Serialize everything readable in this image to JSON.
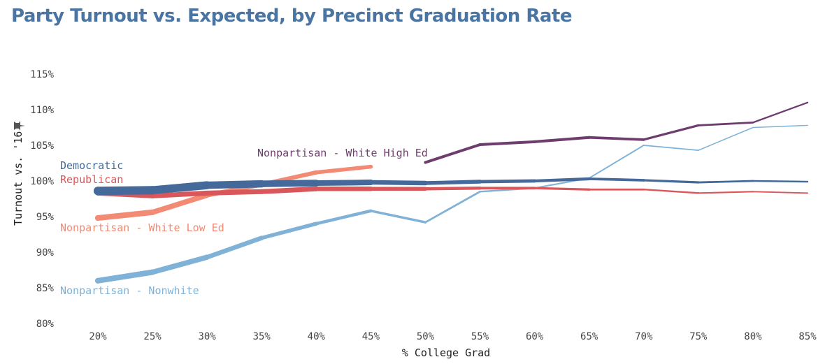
{
  "title": "Party Turnout vs. Expected, by Precinct Graduation Rate",
  "colors": {
    "title": "#4a74a1",
    "democratic": "#44699a",
    "republican": "#d9565a",
    "white_low_ed": "#f28a74",
    "nonwhite": "#7fb2d6",
    "white_high_ed": "#6e3d6e",
    "pin_icon": "#555555"
  },
  "pin_icon": "pin-icon",
  "chart_data": {
    "type": "line",
    "xlabel": "% College Grad",
    "ylabel": "Turnout vs. '16",
    "x_tick_labels": [
      "20%",
      "25%",
      "30%",
      "35%",
      "40%",
      "45%",
      "50%",
      "55%",
      "60%",
      "65%",
      "70%",
      "75%",
      "80%",
      "85%"
    ],
    "y_tick_labels": [
      "80%",
      "85%",
      "90%",
      "95%",
      "100%",
      "105%",
      "110%",
      "115%"
    ],
    "x_range": [
      20,
      85
    ],
    "y_range": [
      79.5,
      119
    ],
    "grid": false,
    "legend": "inline labels",
    "series": [
      {
        "name": "Nonpartisan - Nonwhite",
        "color_key": "nonwhite",
        "x": [
          20,
          25,
          30,
          35,
          40,
          45,
          50,
          55,
          60,
          65,
          70,
          75,
          80,
          85
        ],
        "y": [
          86.0,
          87.2,
          89.3,
          92.0,
          94.0,
          95.8,
          94.2,
          98.5,
          99.0,
          100.4,
          105.0,
          104.3,
          107.5,
          107.8
        ],
        "weights": [
          8,
          8,
          7,
          6,
          5,
          4,
          3,
          2.6,
          2.2,
          2,
          1.8,
          1.6,
          1.5,
          1.4
        ]
      },
      {
        "name": "Nonpartisan - White Low Ed",
        "color_key": "white_low_ed",
        "x": [
          20,
          25,
          30,
          35,
          40,
          45
        ],
        "y": [
          94.8,
          95.6,
          98.0,
          99.5,
          101.2,
          102.0
        ],
        "weights": [
          8,
          8,
          7,
          6,
          6,
          5
        ]
      },
      {
        "name": "Republican",
        "color_key": "republican",
        "x": [
          20,
          25,
          30,
          35,
          40,
          45,
          50,
          55,
          60,
          65,
          70,
          75,
          80,
          85
        ],
        "y": [
          98.3,
          97.9,
          98.3,
          98.5,
          98.9,
          98.9,
          98.9,
          99.0,
          99.0,
          98.8,
          98.8,
          98.3,
          98.5,
          98.3
        ],
        "weights": [
          7,
          7,
          7,
          7,
          7,
          6,
          5,
          4,
          3.5,
          3,
          2.6,
          2.2,
          2,
          1.8
        ]
      },
      {
        "name": "Democratic",
        "color_key": "democratic",
        "x": [
          20,
          25,
          30,
          35,
          40,
          45,
          50,
          55,
          60,
          65,
          70,
          75,
          80,
          85
        ],
        "y": [
          98.6,
          98.7,
          99.4,
          99.6,
          99.7,
          99.8,
          99.7,
          99.9,
          100.0,
          100.3,
          100.1,
          99.8,
          100.0,
          99.9
        ],
        "weights": [
          12,
          12,
          11,
          10,
          9,
          7,
          6,
          5,
          4.5,
          4,
          3.5,
          3,
          2.6,
          2.2
        ]
      },
      {
        "name": "Nonpartisan - White High Ed",
        "color_key": "white_high_ed",
        "x": [
          50,
          55,
          60,
          65,
          70,
          75,
          80,
          85
        ],
        "y": [
          102.6,
          105.1,
          105.5,
          106.1,
          105.8,
          107.8,
          108.2,
          111.0
        ],
        "weights": [
          4,
          4,
          4,
          4,
          3.5,
          3,
          2.6,
          2
        ]
      }
    ]
  }
}
